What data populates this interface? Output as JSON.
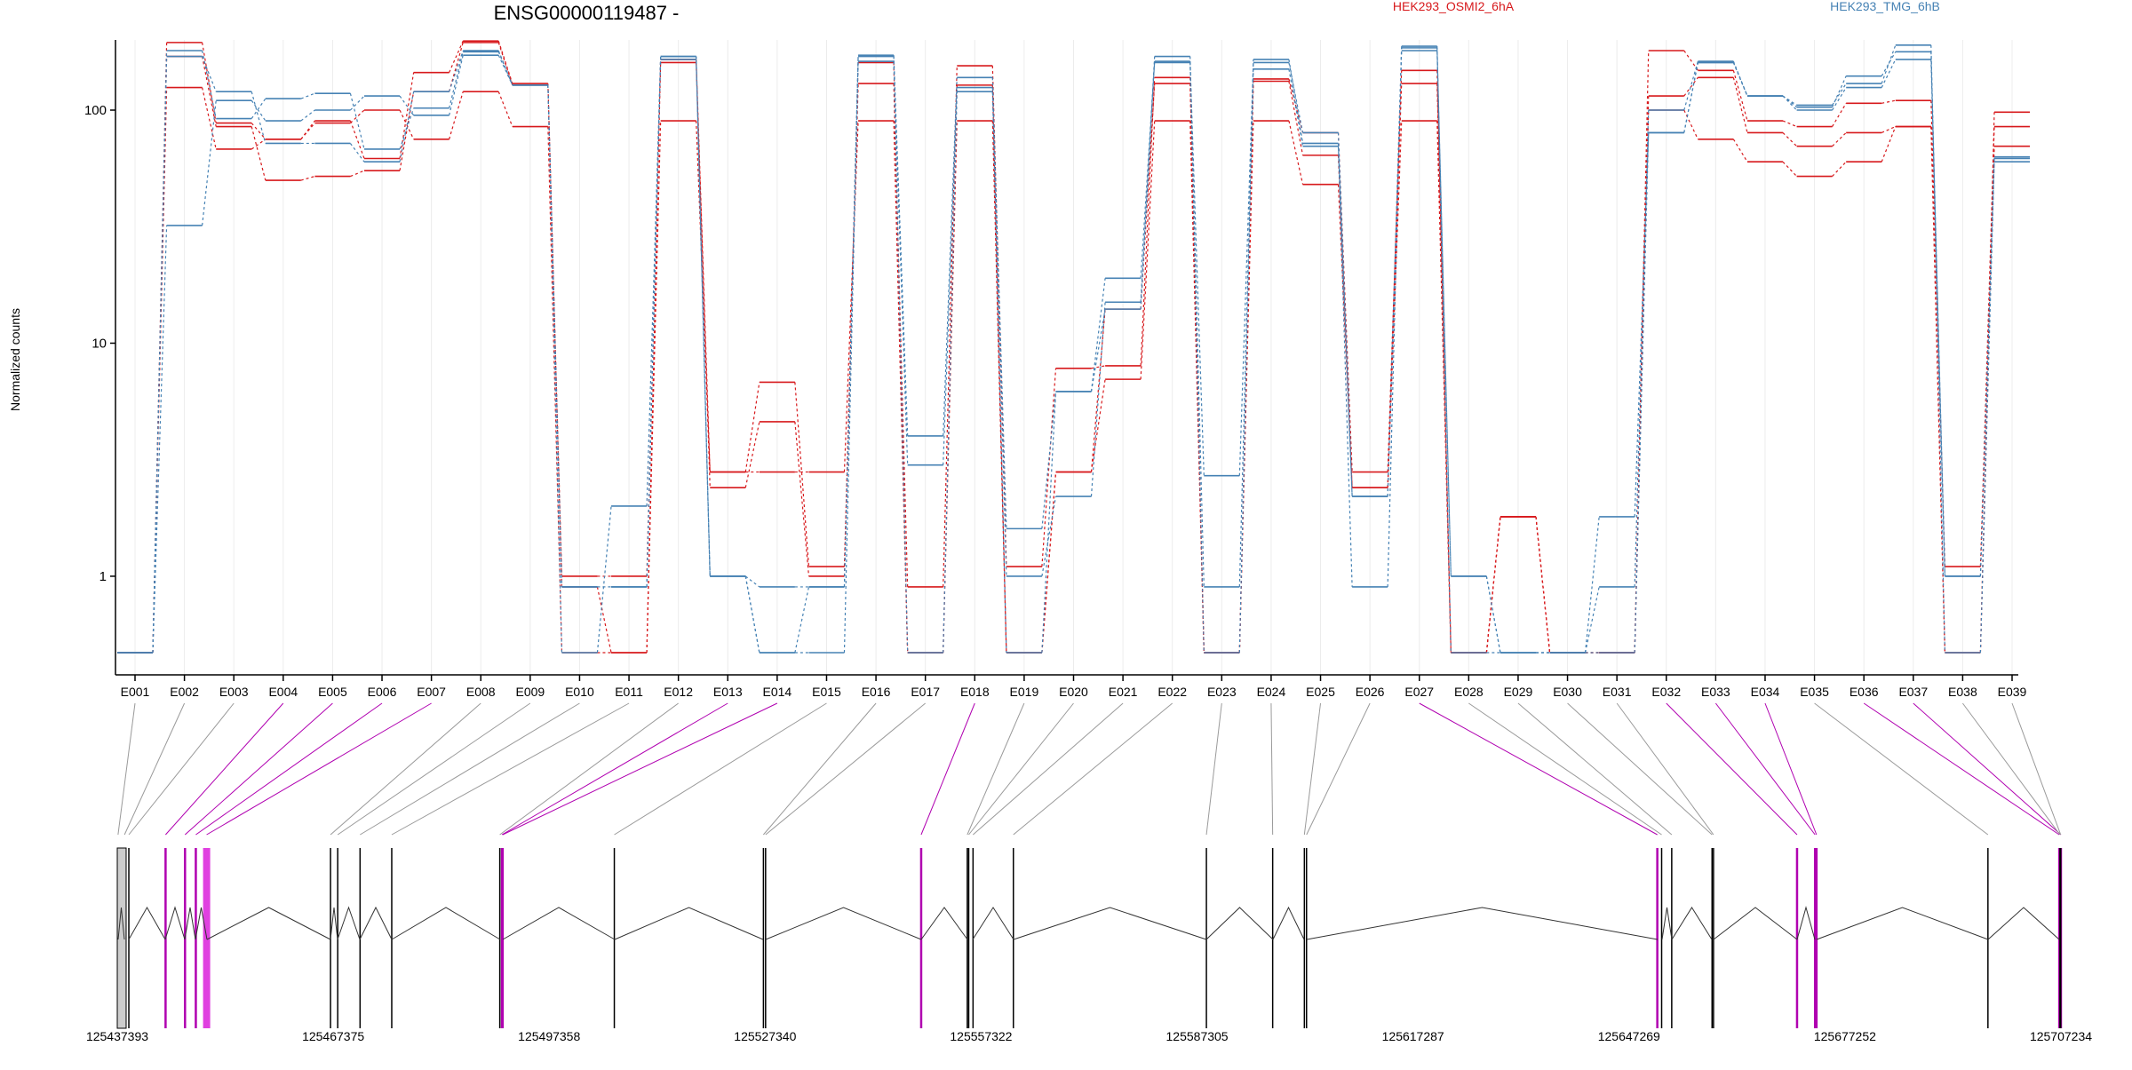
{
  "chart_data": {
    "type": "line",
    "title": "ENSG00000119487 -",
    "xlabel": "",
    "ylabel": "Normalized counts",
    "y_scale": "log",
    "ylim": [
      0.47,
      200
    ],
    "y_ticks": [
      1,
      10,
      100
    ],
    "y_tick_labels": [
      "1",
      "10",
      "100"
    ],
    "grid": "vertical gridlines per exon",
    "legend_placement": "top-right",
    "exons": [
      "E001",
      "E002",
      "E003",
      "E004",
      "E005",
      "E006",
      "E007",
      "E008",
      "E009",
      "E010",
      "E011",
      "E012",
      "E013",
      "E014",
      "E015",
      "E016",
      "E017",
      "E018",
      "E019",
      "E020",
      "E021",
      "E022",
      "E023",
      "E024",
      "E025",
      "E026",
      "E027",
      "E028",
      "E029",
      "E030",
      "E031",
      "E032",
      "E033",
      "E034",
      "E035",
      "E036",
      "E037",
      "E038",
      "E039"
    ],
    "series": [
      {
        "name": "HEK293_OSMI2_6hA",
        "group": "HEK293_OSMI2_6hA",
        "values": [
          0.47,
          170,
          85,
          50,
          52,
          55,
          120,
          195,
          128,
          1.0,
          1.0,
          165,
          2.8,
          6.8,
          1.1,
          130,
          0.9,
          155,
          1.1,
          7.8,
          8.0,
          138,
          0.47,
          136,
          80,
          2.8,
          148,
          0.47,
          1.8,
          0.47,
          0.47,
          180,
          148,
          90,
          85,
          107,
          110,
          1.1,
          85
        ]
      },
      {
        "name": "HEK293_OSMI2_6hA",
        "group": "HEK293_OSMI2_6hA",
        "values": [
          0.47,
          195,
          88,
          75,
          90,
          62,
          145,
          198,
          130,
          0.9,
          0.47,
          160,
          2.4,
          4.6,
          1.0,
          160,
          0.47,
          128,
          0.47,
          2.8,
          14,
          130,
          0.47,
          133,
          64,
          2.4,
          130,
          0.47,
          1.8,
          0.47,
          0.47,
          115,
          138,
          80,
          70,
          80,
          85,
          0.47,
          98
        ]
      },
      {
        "name": "HEK293_OSMI2_6hA",
        "group": "HEK293_OSMI2_6hA",
        "values": [
          0.47,
          125,
          68,
          75,
          88,
          100,
          75,
          120,
          85,
          0.47,
          0.47,
          90,
          2.8,
          2.8,
          2.8,
          90,
          0.47,
          90,
          0.47,
          2.8,
          7.0,
          90,
          0.47,
          90,
          48,
          2.4,
          90,
          0.47,
          1.8,
          0.47,
          0.47,
          100,
          75,
          60,
          52,
          60,
          85,
          0.47,
          70
        ]
      },
      {
        "name": "HEK293_TMG_6hB",
        "group": "HEK293_TMG_6hB",
        "values": [
          0.47,
          180,
          92,
          112,
          118,
          68,
          102,
          178,
          128,
          0.47,
          2.0,
          165,
          1.0,
          0.9,
          0.9,
          172,
          4.0,
          138,
          1.6,
          6.2,
          19,
          160,
          2.7,
          160,
          80,
          2.2,
          185,
          1.0,
          0.47,
          0.47,
          1.8,
          80,
          160,
          115,
          103,
          140,
          178,
          1.0,
          62
        ]
      },
      {
        "name": "HEK293_TMG_6hB",
        "group": "HEK293_TMG_6hB",
        "values": [
          0.47,
          32,
          110,
          90,
          100,
          115,
          95,
          172,
          128,
          0.9,
          0.9,
          170,
          1.0,
          0.47,
          0.9,
          162,
          3.0,
          125,
          1.0,
          2.2,
          15,
          162,
          0.9,
          150,
          70,
          2.2,
          180,
          1.0,
          0.47,
          0.47,
          0.9,
          100,
          162,
          115,
          100,
          125,
          165,
          1.0,
          63
        ]
      },
      {
        "name": "HEK293_TMG_6hB",
        "group": "HEK293_TMG_6hB",
        "values": [
          0.47,
          170,
          120,
          72,
          72,
          60,
          120,
          180,
          128,
          0.9,
          0.9,
          170,
          1.0,
          0.47,
          0.47,
          170,
          0.47,
          120,
          0.47,
          6.2,
          14,
          170,
          0.47,
          165,
          72,
          0.9,
          188,
          0.47,
          0.47,
          0.47,
          0.47,
          80,
          160,
          115,
          105,
          130,
          190,
          0.47,
          60
        ]
      }
    ],
    "genomic_axis": {
      "tick_labels": [
        "125437393",
        "125467375",
        "125497358",
        "125527340",
        "125557322",
        "125587305",
        "125617287",
        "125647269",
        "125677252",
        "125707234"
      ],
      "tick_values": [
        125437393,
        125467375,
        125497358,
        125527340,
        125557322,
        125587305,
        125617287,
        125647269,
        125677252,
        125707234
      ],
      "range": [
        125437393,
        125707234
      ]
    },
    "exon_genomic_positions": [
      125437500,
      125438400,
      125439000,
      125444100,
      125446800,
      125448300,
      125449800,
      125467000,
      125468000,
      125471100,
      125475500,
      125490500,
      125490800,
      125490900,
      125506400,
      125527100,
      125527400,
      125549000,
      125555400,
      125555600,
      125556200,
      125561800,
      125588600,
      125597800,
      125602200,
      125602500,
      125651200,
      125651800,
      125653200,
      125658800,
      125659000,
      125670600,
      125673100,
      125673300,
      125697100,
      125707000,
      125707234,
      125707100,
      125707200
    ],
    "highlighted_exons": [
      "E004",
      "E005",
      "E006",
      "E007",
      "E013",
      "E014",
      "E018",
      "E027",
      "E032",
      "E033",
      "E034",
      "E036",
      "E037"
    ],
    "colors": {
      "HEK293_OSMI2_6hA": "#d7191c",
      "HEK293_TMG_6hB": "#4682b4",
      "highlight": "#b000b0",
      "highlight_fill": "#e040e0",
      "neutral_link": "#9a9a9a",
      "axis": "#000000"
    }
  }
}
